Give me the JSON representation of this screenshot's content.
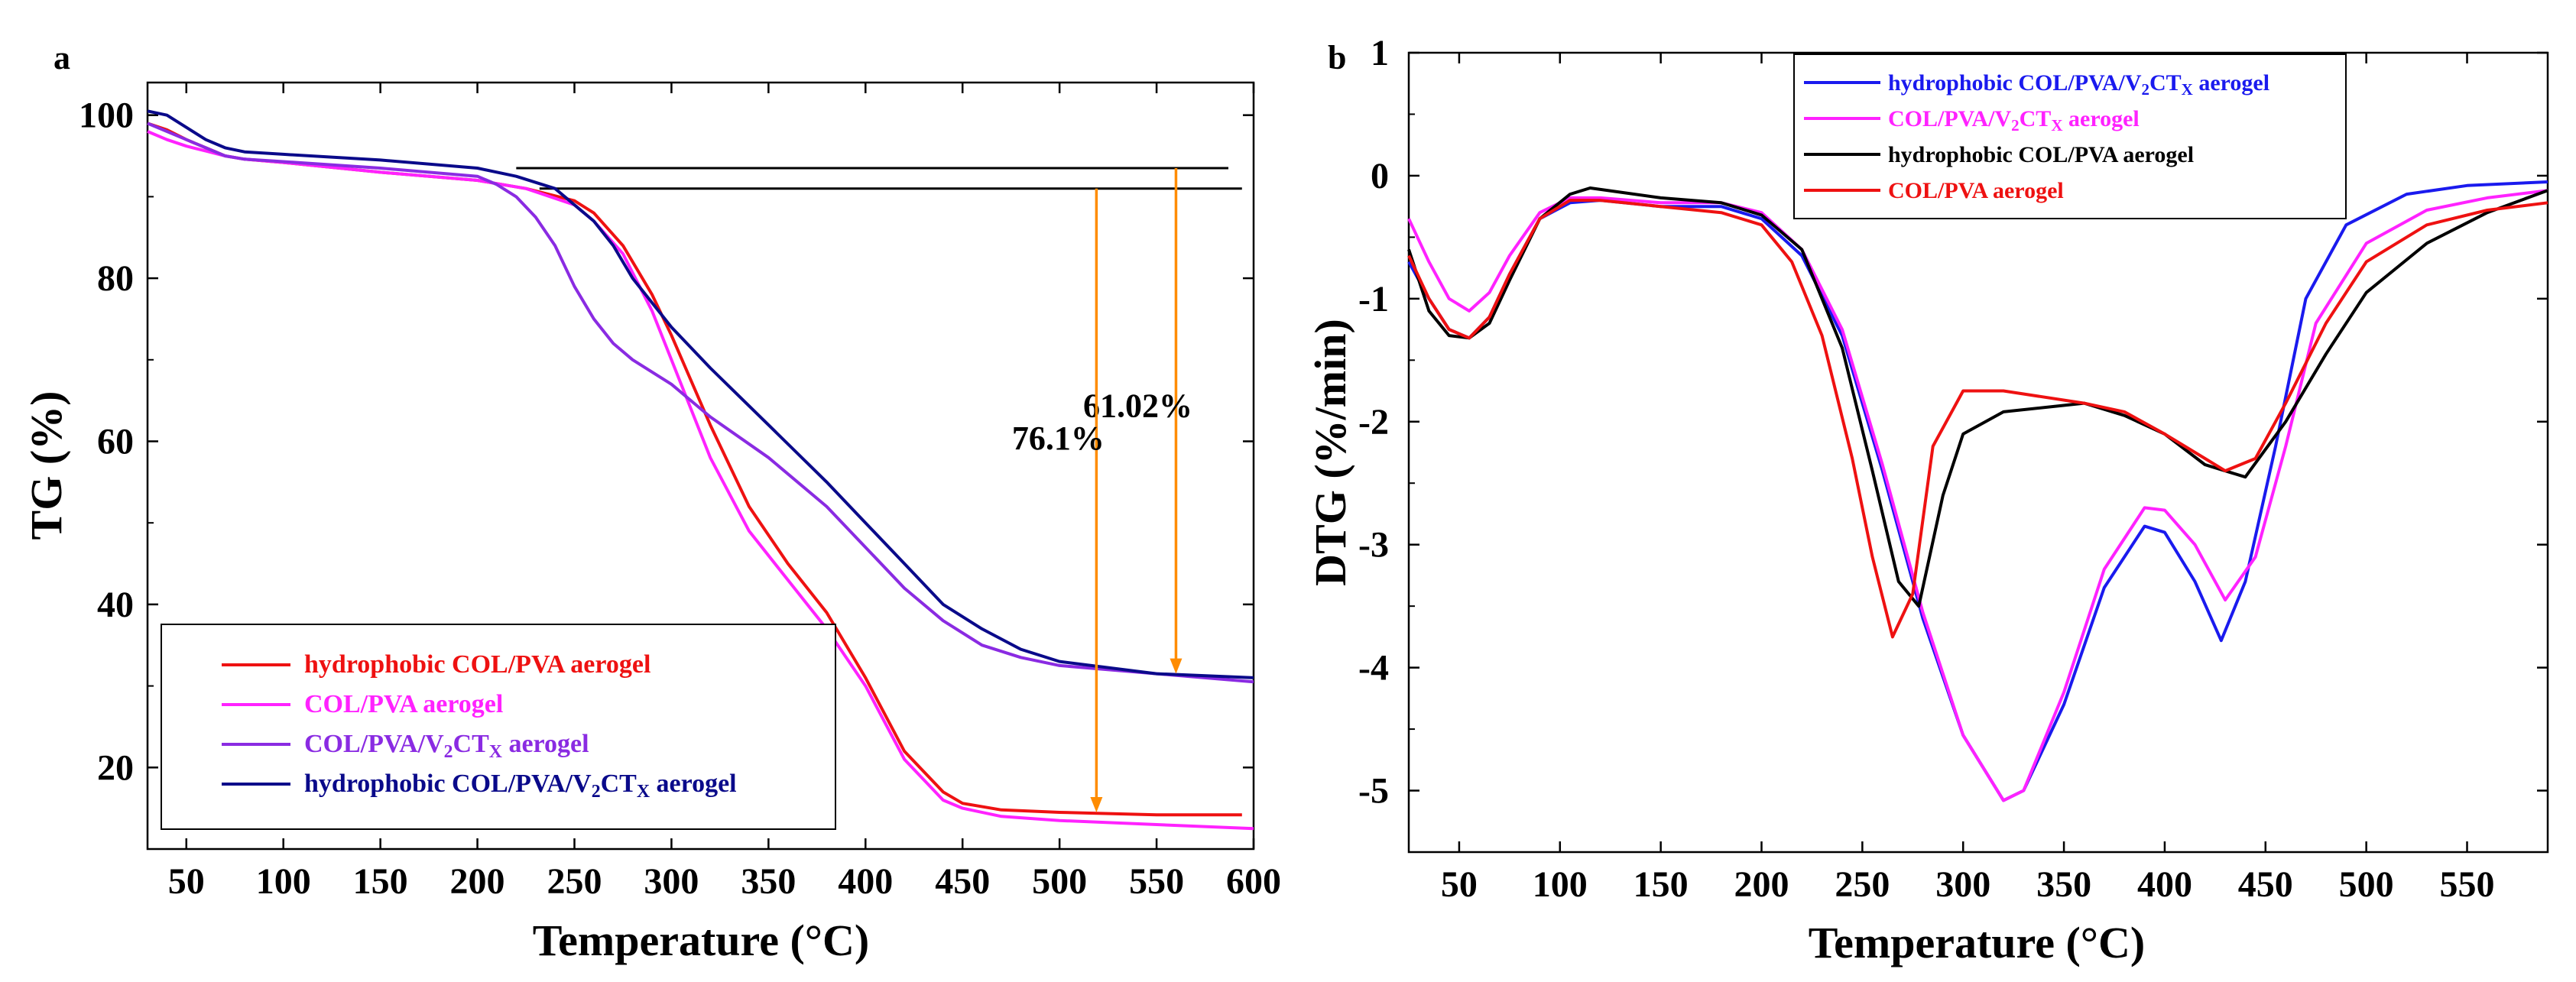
{
  "chart_data": [
    {
      "panel_label": "a",
      "type": "line",
      "xlabel": "Temperature (°C)",
      "ylabel": "TG (%)",
      "xlim": [
        30,
        600
      ],
      "ylim": [
        10,
        104
      ],
      "x_ticks": [
        50,
        100,
        150,
        200,
        250,
        300,
        350,
        400,
        450,
        500,
        550,
        600
      ],
      "y_ticks": [
        20,
        40,
        60,
        80,
        100
      ],
      "legend": {
        "position": "bottom-left",
        "entries": [
          {
            "label": "hydrophobic COL/PVA aerogel",
            "color": "#ee1111"
          },
          {
            "label": "COL/PVA aerogel",
            "color": "#ff22ff"
          },
          {
            "label": "COL/PVA/V2CTX aerogel",
            "color": "#8a2be2"
          },
          {
            "label": "hydrophobic COL/PVA/V2CTX aerogel",
            "color": "#0a0a8a"
          }
        ]
      },
      "reference_lines": [
        {
          "y": 93.5,
          "x_range": [
            220,
            587
          ],
          "color": "#000000"
        },
        {
          "y": 91.0,
          "x_range": [
            232,
            594
          ],
          "color": "#000000"
        }
      ],
      "annotations": [
        {
          "text": "61.02%",
          "x": 560,
          "y": 63,
          "arrow_from": 93.5,
          "arrow_to": 31.5,
          "color": "#ff8c00"
        },
        {
          "text": "76.1%",
          "x": 519,
          "y": 59,
          "arrow_from": 91.0,
          "arrow_to": 14.5,
          "color": "#ff8c00"
        }
      ],
      "series": [
        {
          "name": "hydrophobic COL/PVA aerogel",
          "color": "#ee1111",
          "x": [
            30,
            40,
            50,
            60,
            70,
            80,
            100,
            150,
            200,
            225,
            250,
            260,
            275,
            290,
            300,
            320,
            340,
            360,
            380,
            400,
            420,
            440,
            450,
            470,
            500,
            550,
            594
          ],
          "y": [
            99,
            98.2,
            97,
            96,
            95,
            94.6,
            94.2,
            93,
            92,
            91,
            89.5,
            88,
            84,
            78,
            73,
            62,
            52,
            45,
            39,
            31,
            22,
            17,
            15.6,
            14.8,
            14.5,
            14.2,
            14.2
          ]
        },
        {
          "name": "COL/PVA aerogel",
          "color": "#ff22ff",
          "x": [
            30,
            40,
            50,
            60,
            70,
            80,
            100,
            150,
            200,
            225,
            250,
            260,
            275,
            290,
            300,
            320,
            340,
            360,
            380,
            400,
            420,
            440,
            450,
            470,
            500,
            550,
            600
          ],
          "y": [
            98,
            97,
            96.2,
            95.6,
            95,
            94.6,
            94.2,
            93,
            92,
            91,
            89,
            87,
            83,
            76,
            70,
            58,
            49,
            43,
            37,
            30,
            21,
            16,
            15,
            14,
            13.5,
            13,
            12.5
          ]
        },
        {
          "name": "COL/PVA/V2CTX aerogel",
          "color": "#8a2be2",
          "x": [
            30,
            40,
            50,
            60,
            70,
            80,
            100,
            150,
            200,
            210,
            220,
            230,
            240,
            250,
            260,
            270,
            280,
            300,
            320,
            350,
            380,
            400,
            420,
            440,
            460,
            480,
            500,
            550,
            600
          ],
          "y": [
            99,
            98,
            97,
            96,
            95,
            94.6,
            94.3,
            93.5,
            92.5,
            91.5,
            90,
            87.5,
            84,
            79,
            75,
            72,
            70,
            67,
            63,
            58,
            52,
            47,
            42,
            38,
            35,
            33.5,
            32.5,
            31.5,
            30.5
          ]
        },
        {
          "name": "hydrophobic COL/PVA/V2CTX aerogel",
          "color": "#0a0a8a",
          "x": [
            30,
            40,
            50,
            60,
            70,
            80,
            100,
            150,
            200,
            220,
            240,
            260,
            270,
            280,
            300,
            320,
            350,
            380,
            400,
            420,
            440,
            460,
            480,
            500,
            550,
            600
          ],
          "y": [
            100.5,
            100,
            98.5,
            97,
            96,
            95.5,
            95.2,
            94.5,
            93.5,
            92.5,
            91,
            87,
            84,
            80,
            74,
            69,
            62,
            55,
            50,
            45,
            40,
            37,
            34.5,
            33,
            31.5,
            31
          ]
        }
      ]
    },
    {
      "panel_label": "b",
      "type": "line",
      "xlabel": "Temperature (°C)",
      "ylabel": "DTG (%/min)",
      "xlim": [
        25,
        590
      ],
      "ylim": [
        -5.5,
        1
      ],
      "x_ticks": [
        50,
        100,
        150,
        200,
        250,
        300,
        350,
        400,
        450,
        500,
        550
      ],
      "y_ticks": [
        1,
        0,
        -1,
        -2,
        -3,
        -4,
        -5
      ],
      "legend": {
        "position": "top-center",
        "entries": [
          {
            "label": "hydrophobic COL/PVA/V2CTX aerogel",
            "color": "#1a1aee"
          },
          {
            "label": "COL/PVA/V2CTX aerogel",
            "color": "#ff22ff"
          },
          {
            "label": "hydrophobic COL/PVA aerogel",
            "color": "#000000"
          },
          {
            "label": "COL/PVA aerogel",
            "color": "#ee1111"
          }
        ]
      },
      "series": [
        {
          "name": "hydrophobic COL/PVA/V2CTX aerogel",
          "color": "#1a1aee",
          "x": [
            25,
            35,
            45,
            55,
            65,
            75,
            90,
            105,
            120,
            150,
            180,
            200,
            220,
            240,
            260,
            280,
            300,
            320,
            330,
            350,
            370,
            390,
            400,
            415,
            428,
            440,
            455,
            470,
            490,
            520,
            550,
            590
          ],
          "y": [
            -0.7,
            -1.0,
            -1.25,
            -1.32,
            -1.15,
            -0.8,
            -0.35,
            -0.22,
            -0.2,
            -0.25,
            -0.25,
            -0.35,
            -0.65,
            -1.3,
            -2.4,
            -3.6,
            -4.55,
            -5.08,
            -5.0,
            -4.3,
            -3.35,
            -2.85,
            -2.9,
            -3.3,
            -3.78,
            -3.3,
            -2.2,
            -1.0,
            -0.4,
            -0.15,
            -0.08,
            -0.05
          ]
        },
        {
          "name": "COL/PVA/V2CTX aerogel",
          "color": "#ff22ff",
          "x": [
            25,
            35,
            45,
            55,
            65,
            75,
            90,
            105,
            120,
            150,
            180,
            200,
            220,
            240,
            260,
            280,
            300,
            320,
            330,
            350,
            370,
            390,
            400,
            415,
            430,
            445,
            460,
            475,
            500,
            530,
            560,
            590
          ],
          "y": [
            -0.35,
            -0.7,
            -1.0,
            -1.1,
            -0.95,
            -0.65,
            -0.3,
            -0.18,
            -0.18,
            -0.22,
            -0.22,
            -0.3,
            -0.6,
            -1.25,
            -2.35,
            -3.55,
            -4.55,
            -5.08,
            -5.0,
            -4.2,
            -3.2,
            -2.7,
            -2.72,
            -3.0,
            -3.45,
            -3.1,
            -2.2,
            -1.2,
            -0.55,
            -0.28,
            -0.18,
            -0.12
          ]
        },
        {
          "name": "hydrophobic COL/PVA aerogel",
          "color": "#000000",
          "x": [
            25,
            35,
            45,
            55,
            65,
            75,
            90,
            105,
            115,
            150,
            180,
            200,
            220,
            240,
            255,
            268,
            278,
            290,
            300,
            320,
            360,
            380,
            400,
            420,
            440,
            460,
            480,
            500,
            530,
            560,
            590
          ],
          "y": [
            -0.6,
            -1.1,
            -1.3,
            -1.32,
            -1.2,
            -0.85,
            -0.35,
            -0.15,
            -0.1,
            -0.18,
            -0.22,
            -0.32,
            -0.6,
            -1.4,
            -2.4,
            -3.3,
            -3.5,
            -2.6,
            -2.1,
            -1.92,
            -1.85,
            -1.95,
            -2.1,
            -2.35,
            -2.45,
            -2.0,
            -1.45,
            -0.95,
            -0.55,
            -0.3,
            -0.12
          ]
        },
        {
          "name": "COL/PVA aerogel",
          "color": "#ee1111",
          "x": [
            25,
            35,
            45,
            55,
            65,
            75,
            90,
            105,
            120,
            150,
            180,
            200,
            215,
            230,
            245,
            255,
            265,
            275,
            285,
            300,
            320,
            360,
            380,
            400,
            420,
            430,
            445,
            460,
            480,
            500,
            530,
            560,
            590
          ],
          "y": [
            -0.65,
            -1.0,
            -1.25,
            -1.32,
            -1.15,
            -0.8,
            -0.35,
            -0.2,
            -0.2,
            -0.25,
            -0.3,
            -0.4,
            -0.7,
            -1.3,
            -2.3,
            -3.1,
            -3.75,
            -3.4,
            -2.2,
            -1.75,
            -1.75,
            -1.85,
            -1.92,
            -2.1,
            -2.3,
            -2.4,
            -2.3,
            -1.85,
            -1.2,
            -0.7,
            -0.4,
            -0.28,
            -0.22
          ]
        }
      ]
    }
  ]
}
